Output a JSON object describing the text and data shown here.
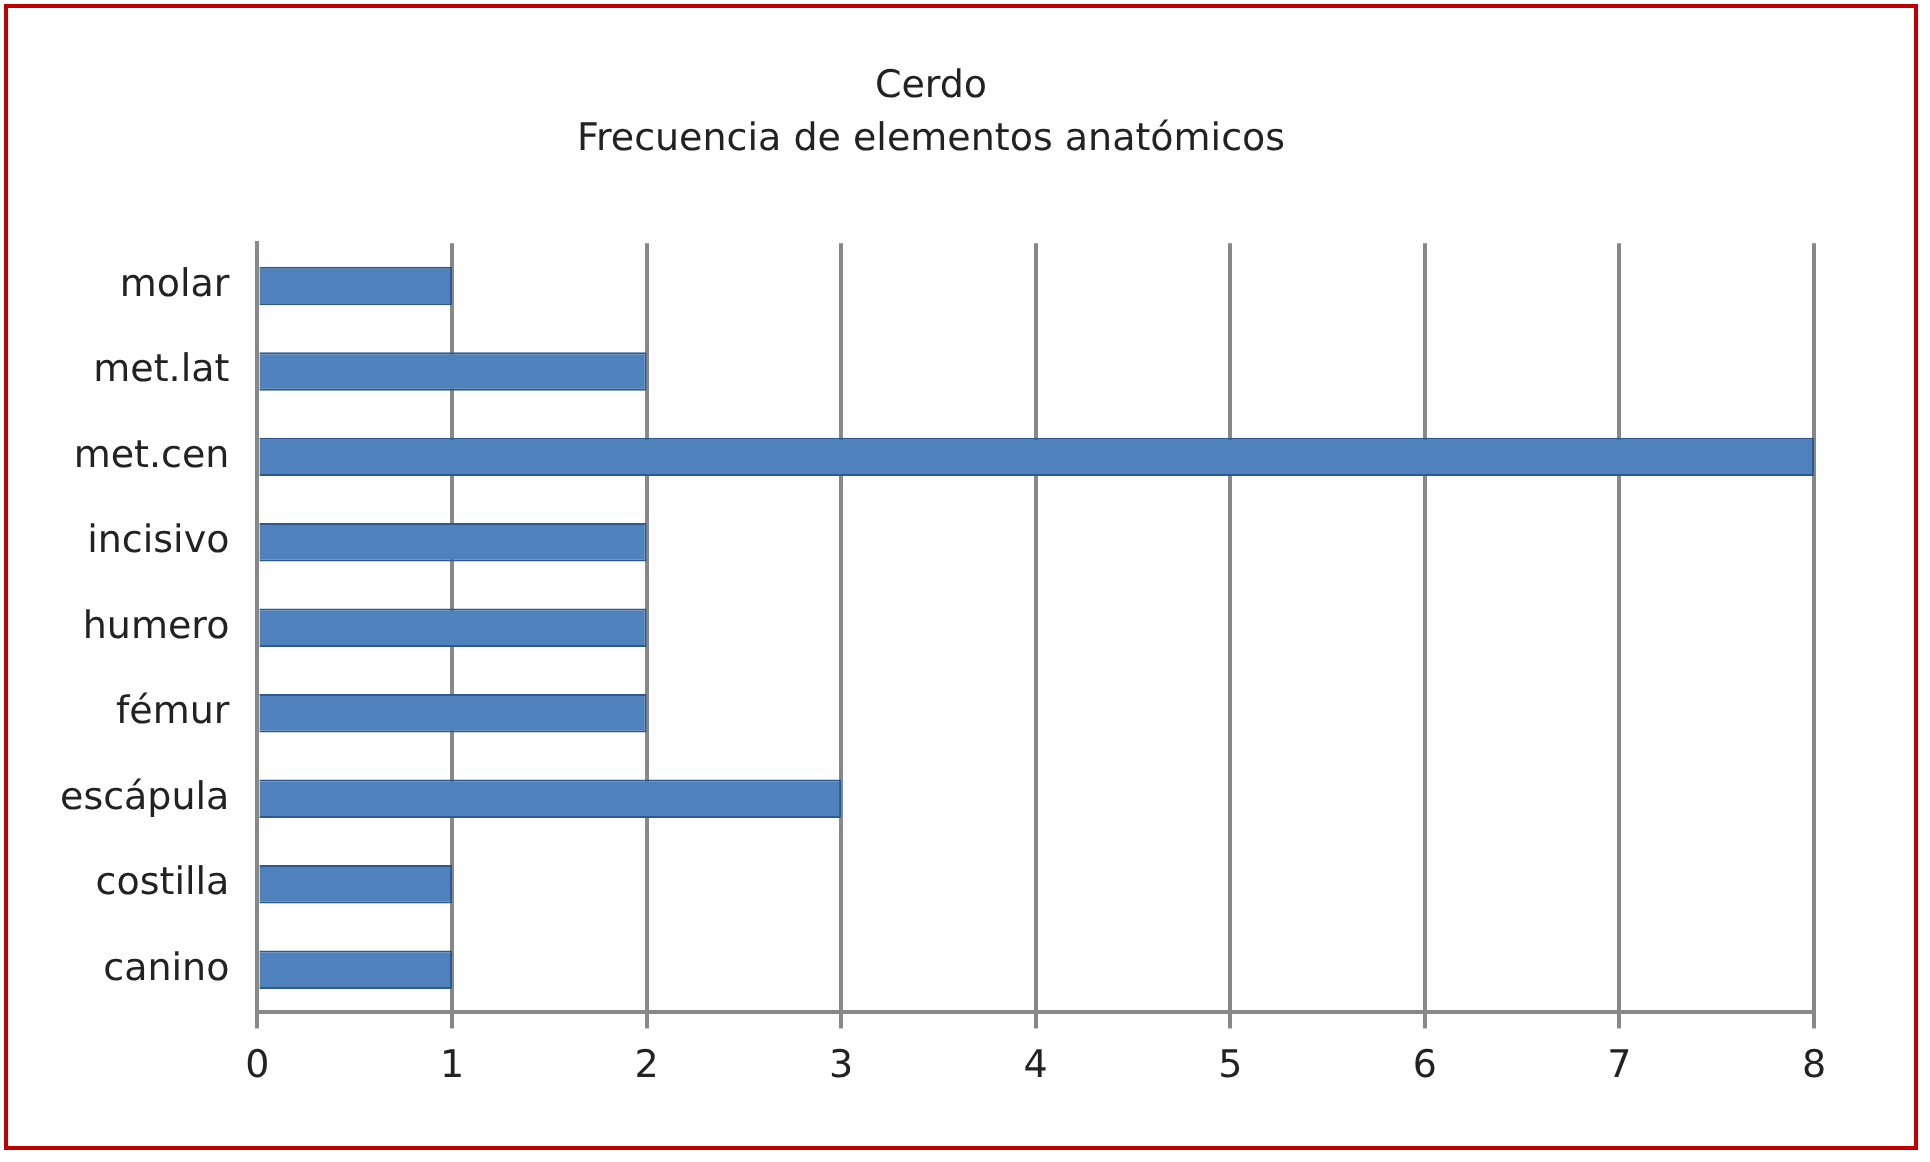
{
  "chart_data": {
    "type": "bar",
    "orientation": "horizontal",
    "title": "Cerdo",
    "subtitle": "Frecuencia de elementos anatómicos",
    "categories": [
      "molar",
      "met.lat",
      "met.cen",
      "incisivo",
      "humero",
      "fémur",
      "escápula",
      "costilla",
      "canino"
    ],
    "values": [
      1,
      2,
      8,
      2,
      2,
      2,
      3,
      1,
      1
    ],
    "color": "#4f81bd",
    "xlim": [
      0,
      8
    ],
    "xticks": [
      0,
      1,
      2,
      3,
      4,
      5,
      6,
      7,
      8
    ],
    "grid": "x",
    "legend": false
  }
}
